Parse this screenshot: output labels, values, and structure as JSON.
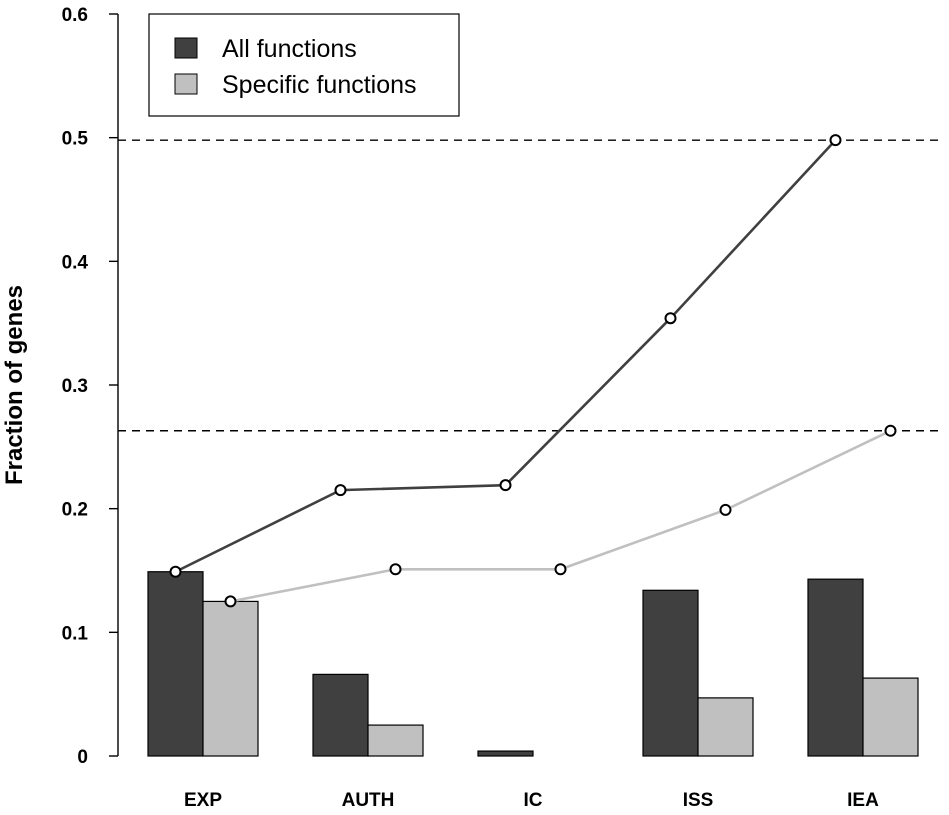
{
  "chart_data": {
    "type": "bar",
    "categories": [
      "EXP",
      "AUTH",
      "IC",
      "ISS",
      "IEA"
    ],
    "ylabel": "Fraction of genes",
    "xlabel": "",
    "ylim": [
      0,
      0.6
    ],
    "yticks": [
      "0",
      "0.1",
      "0.2",
      "0.3",
      "0.4",
      "0.5",
      "0.6"
    ],
    "legend_position": "top-left",
    "series": [
      {
        "name": "All functions",
        "color": "#404040",
        "values": [
          0.149,
          0.066,
          0.004,
          0.134,
          0.143
        ],
        "cumulative": [
          0.149,
          0.215,
          0.219,
          0.354,
          0.498
        ]
      },
      {
        "name": "Specific functions",
        "color": "#c0c0c0",
        "values": [
          0.125,
          0.025,
          0.0,
          0.047,
          0.063
        ],
        "cumulative": [
          0.125,
          0.151,
          0.151,
          0.199,
          0.263
        ]
      }
    ],
    "reference_lines": [
      0.498,
      0.263
    ]
  }
}
